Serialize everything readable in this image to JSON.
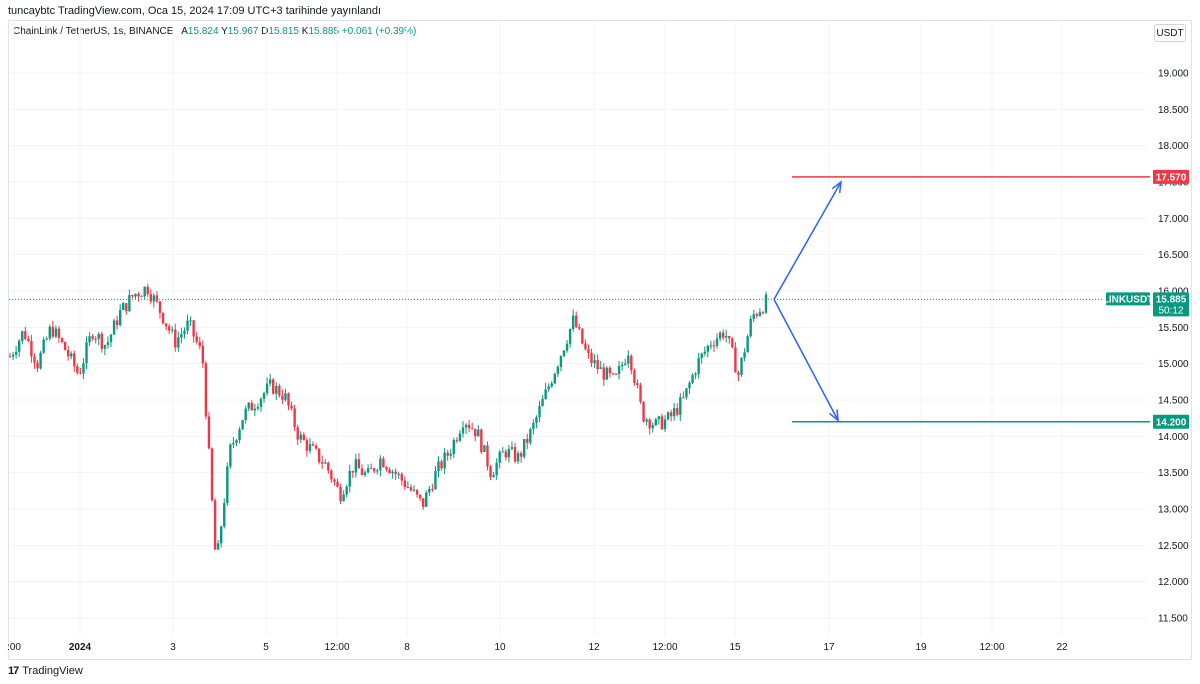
{
  "header": {
    "published": "tuncaybtc TradingView.com, Oca 15, 2024 17:09 UTC+3 tarihinde yayınlandı"
  },
  "legend": {
    "symbol": "ChainLink / TetherUS, 1s, BINANCE",
    "open_label": "A",
    "open": "15.824",
    "high_label": "Y",
    "high": "15.967",
    "low_label": "D",
    "low": "15.815",
    "close_label": "K",
    "close": "15.885",
    "change": "+0.061 (+0.39%)"
  },
  "currency_button": "USDT",
  "colors": {
    "up": "#089981",
    "down": "#f23645",
    "arrow": "#2962ff",
    "resistance": "#f23645",
    "support": "#089981"
  },
  "chart_data": {
    "type": "candlestick",
    "symbol": "LINKUSDT",
    "y_ticks": [
      "19.000",
      "18.500",
      "18.000",
      "17.500",
      "17.000",
      "16.500",
      "16.000",
      "15.500",
      "15.000",
      "14.500",
      "14.000",
      "13.500",
      "13.000",
      "12.500",
      "12.000",
      "11.500"
    ],
    "ylim": [
      11.3,
      19.4
    ],
    "x_ticks": [
      ":00",
      "2024",
      "3",
      "5",
      "12:00",
      "8",
      "10",
      "12",
      "12:00",
      "15",
      "17",
      "19",
      "12:00",
      "22"
    ],
    "current_price": {
      "label": "LINKUSDT",
      "price": "15.885",
      "countdown": "50:12",
      "value": 15.885
    },
    "levels": [
      {
        "name": "resistance",
        "label": "17.570",
        "value": 17.57
      },
      {
        "name": "support",
        "label": "14.200",
        "value": 14.2
      }
    ],
    "price_path": [
      15.1,
      15.45,
      15.0,
      15.5,
      15.2,
      14.85,
      15.45,
      15.25,
      15.7,
      15.95,
      16.05,
      15.7,
      15.3,
      15.55,
      15.1,
      12.2,
      13.8,
      14.3,
      14.5,
      14.7,
      14.55,
      14.0,
      13.8,
      13.6,
      13.2,
      13.6,
      13.45,
      13.7,
      13.5,
      13.3,
      13.05,
      13.5,
      13.8,
      14.25,
      14.05,
      13.5,
      13.8,
      13.7,
      14.1,
      14.6,
      15.1,
      15.6,
      15.1,
      14.9,
      14.75,
      15.2,
      14.3,
      14.15,
      14.25,
      14.5,
      15.0,
      15.3,
      15.45,
      14.85,
      15.65,
      15.85
    ],
    "projection": {
      "bull_target": 17.5,
      "bear_target": 14.22
    }
  }
}
